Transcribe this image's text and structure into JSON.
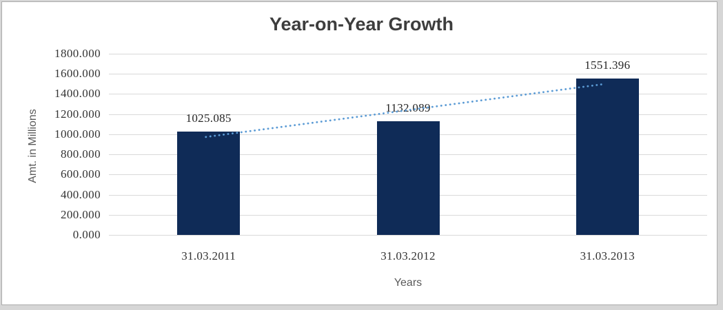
{
  "page": {
    "background_color": "#d6d6d6",
    "panel_border_color": "#ababab",
    "panel_fill_color": "#ffffff"
  },
  "chart_data": {
    "type": "bar",
    "title": "Year-on-Year Growth",
    "xlabel": "Years",
    "ylabel": "Amt. in Millions",
    "categories": [
      "31.03.2011",
      "31.03.2012",
      "31.03.2013"
    ],
    "values": [
      1025.085,
      1132.089,
      1551.396
    ],
    "data_labels": [
      "1025.085",
      "1132.089",
      "1551.396"
    ],
    "ylim": [
      0,
      1800
    ],
    "ytick_step": 200,
    "ytick_labels": [
      "0.000",
      "200.000",
      "400.000",
      "600.000",
      "800.000",
      "1000.000",
      "1200.000",
      "1400.000",
      "1600.000",
      "1800.000"
    ],
    "grid": true,
    "legend": "none",
    "trendline": {
      "type": "linear",
      "style": "dotted",
      "fitted_endpoint_values": [
        973.034,
        1499.346
      ]
    },
    "colors": {
      "bar": "#0f2b57",
      "trendline": "#5b9bd5",
      "gridline": "#d9d9d9",
      "title": "#3d3d3d",
      "axis_title": "#595959",
      "tick_label": "#333333",
      "data_label": "#262626"
    }
  }
}
